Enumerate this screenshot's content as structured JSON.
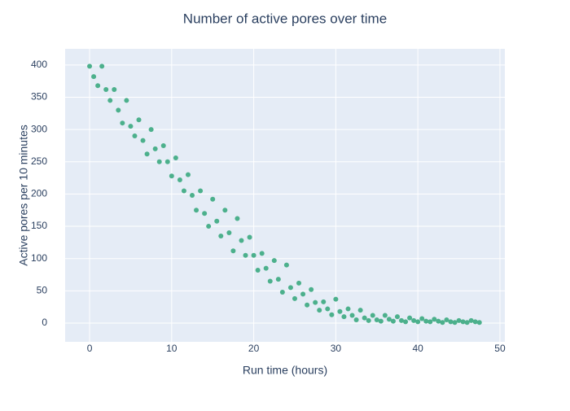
{
  "chart_data": {
    "type": "scatter",
    "title": "Number of active pores over time",
    "x_label": "Run time (hours)",
    "y_label": "Active pores per 10 minutes",
    "color": "#4cb08c",
    "x": [
      0,
      0.5,
      1,
      1.5,
      2,
      2.5,
      3,
      3.5,
      4,
      4.5,
      5,
      5.5,
      6,
      6.5,
      7,
      7.5,
      8,
      8.5,
      9,
      9.5,
      10,
      10.5,
      11,
      11.5,
      12,
      12.5,
      13,
      13.5,
      14,
      14.5,
      15,
      15.5,
      16,
      16.5,
      17,
      17.5,
      18,
      18.5,
      19,
      19.5,
      20,
      20.5,
      21,
      21.5,
      22,
      22.5,
      23,
      23.5,
      24,
      24.5,
      25,
      25.5,
      26,
      26.5,
      27,
      27.5,
      28,
      28.5,
      29,
      29.5,
      30,
      30.5,
      31,
      31.5,
      32,
      32.5,
      33,
      33.5,
      34,
      34.5,
      35,
      35.5,
      36,
      36.5,
      37,
      37.5,
      38,
      38.5,
      39,
      39.5,
      40,
      40.5,
      41,
      41.5,
      42,
      42.5,
      43,
      43.5,
      44,
      44.5,
      45,
      45.5,
      46,
      46.5,
      47,
      47.5
    ],
    "values": [
      398,
      382,
      368,
      398,
      362,
      345,
      362,
      330,
      310,
      345,
      305,
      290,
      315,
      283,
      262,
      300,
      270,
      250,
      275,
      250,
      228,
      256,
      222,
      205,
      230,
      198,
      175,
      205,
      170,
      150,
      192,
      158,
      135,
      175,
      140,
      112,
      162,
      128,
      105,
      133,
      105,
      82,
      108,
      85,
      65,
      97,
      68,
      48,
      90,
      55,
      38,
      62,
      45,
      28,
      52,
      32,
      20,
      33,
      22,
      13,
      37,
      18,
      10,
      22,
      12,
      5,
      20,
      8,
      4,
      12,
      5,
      3,
      12,
      6,
      3,
      10,
      4,
      2,
      8,
      4,
      2,
      7,
      3,
      2,
      6,
      3,
      1,
      5,
      2,
      1,
      4,
      2,
      1,
      4,
      2,
      1
    ],
    "xlim": [
      -2.98,
      50.6
    ],
    "ylim": [
      -29,
      425
    ],
    "xticks": [
      0,
      10,
      20,
      30,
      40,
      50
    ],
    "yticks": [
      0,
      50,
      100,
      150,
      200,
      250,
      300,
      350,
      400
    ],
    "grid": true
  }
}
